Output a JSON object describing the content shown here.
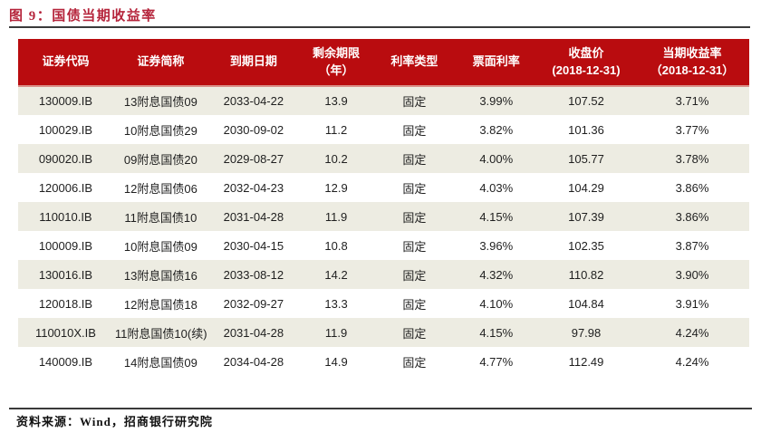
{
  "figure": {
    "title": "图 9：国债当期收益率",
    "source_note": "资料来源：Wind，招商银行研究院"
  },
  "colors": {
    "header_bg": "#b90c0f",
    "header_underline": "#d98f88",
    "row_alt_bg": "#edece2",
    "title_color": "#b5243b",
    "rule_color": "#3a3a3a",
    "text_color": "#1f1f1f"
  },
  "table": {
    "column_keys": [
      "code",
      "name",
      "maturity",
      "remaining_years",
      "rate_type",
      "coupon",
      "close_price",
      "current_yield"
    ],
    "columns": [
      [
        "证券代码"
      ],
      [
        "证券简称"
      ],
      [
        "到期日期"
      ],
      [
        "剩余期限",
        "（年）"
      ],
      [
        "利率类型"
      ],
      [
        "票面利率"
      ],
      [
        "收盘价",
        "(2018-12-31)"
      ],
      [
        "当期收益率",
        "（2018-12-31）"
      ]
    ],
    "rows": [
      [
        "130009.IB",
        "13附息国债09",
        "2033-04-22",
        "13.9",
        "固定",
        "3.99%",
        "107.52",
        "3.71%"
      ],
      [
        "100029.IB",
        "10附息国债29",
        "2030-09-02",
        "11.2",
        "固定",
        "3.82%",
        "101.36",
        "3.77%"
      ],
      [
        "090020.IB",
        "09附息国债20",
        "2029-08-27",
        "10.2",
        "固定",
        "4.00%",
        "105.77",
        "3.78%"
      ],
      [
        "120006.IB",
        "12附息国债06",
        "2032-04-23",
        "12.9",
        "固定",
        "4.03%",
        "104.29",
        "3.86%"
      ],
      [
        "110010.IB",
        "11附息国债10",
        "2031-04-28",
        "11.9",
        "固定",
        "4.15%",
        "107.39",
        "3.86%"
      ],
      [
        "100009.IB",
        "10附息国债09",
        "2030-04-15",
        "10.8",
        "固定",
        "3.96%",
        "102.35",
        "3.87%"
      ],
      [
        "130016.IB",
        "13附息国债16",
        "2033-08-12",
        "14.2",
        "固定",
        "4.32%",
        "110.82",
        "3.90%"
      ],
      [
        "120018.IB",
        "12附息国债18",
        "2032-09-27",
        "13.3",
        "固定",
        "4.10%",
        "104.84",
        "3.91%"
      ],
      [
        "110010X.IB",
        "11附息国债10(续)",
        "2031-04-28",
        "11.9",
        "固定",
        "4.15%",
        "97.98",
        "4.24%"
      ],
      [
        "140009.IB",
        "14附息国债09",
        "2034-04-28",
        "14.9",
        "固定",
        "4.77%",
        "112.49",
        "4.24%"
      ]
    ]
  }
}
